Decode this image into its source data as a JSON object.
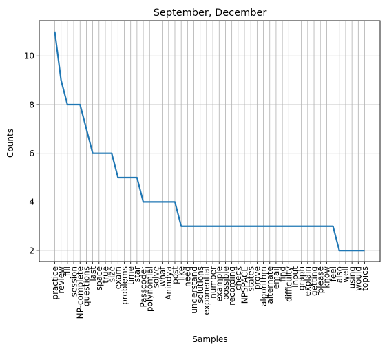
{
  "chart_data": {
    "type": "line",
    "title": "September, December",
    "xlabel": "Samples",
    "ylabel": "Counts",
    "categories": [
      "practice",
      "review",
      "fill",
      "session",
      "NP-complete",
      "questions",
      "last",
      "space",
      "true",
      "size",
      "exam",
      "problems",
      "time",
      "star",
      "Passcode:",
      "polynomial",
      "solve",
      "what",
      "Anindya",
      "post",
      "like",
      "need",
      "understand",
      "solutions",
      "exponential",
      "number",
      "example",
      "possible",
      "recording",
      "check",
      "NPSPACE",
      "states",
      "prove",
      "algorithm",
      "alternate",
      "email",
      "find",
      "difficulty",
      "input",
      "graph",
      "explain",
      "getting",
      "please",
      "know",
      "feel",
      "also",
      "well",
      "using",
      "would",
      "topics"
    ],
    "values": [
      11,
      9,
      8,
      8,
      8,
      7,
      6,
      6,
      6,
      6,
      5,
      5,
      5,
      5,
      4,
      4,
      4,
      4,
      4,
      4,
      3,
      3,
      3,
      3,
      3,
      3,
      3,
      3,
      3,
      3,
      3,
      3,
      3,
      3,
      3,
      3,
      3,
      3,
      3,
      3,
      3,
      3,
      3,
      3,
      3,
      2,
      2,
      2,
      2,
      2
    ],
    "yticks": [
      2,
      4,
      6,
      8,
      10
    ],
    "ylim": [
      1.55,
      11.45
    ],
    "grid": true,
    "line_color": "#1f77b4"
  }
}
